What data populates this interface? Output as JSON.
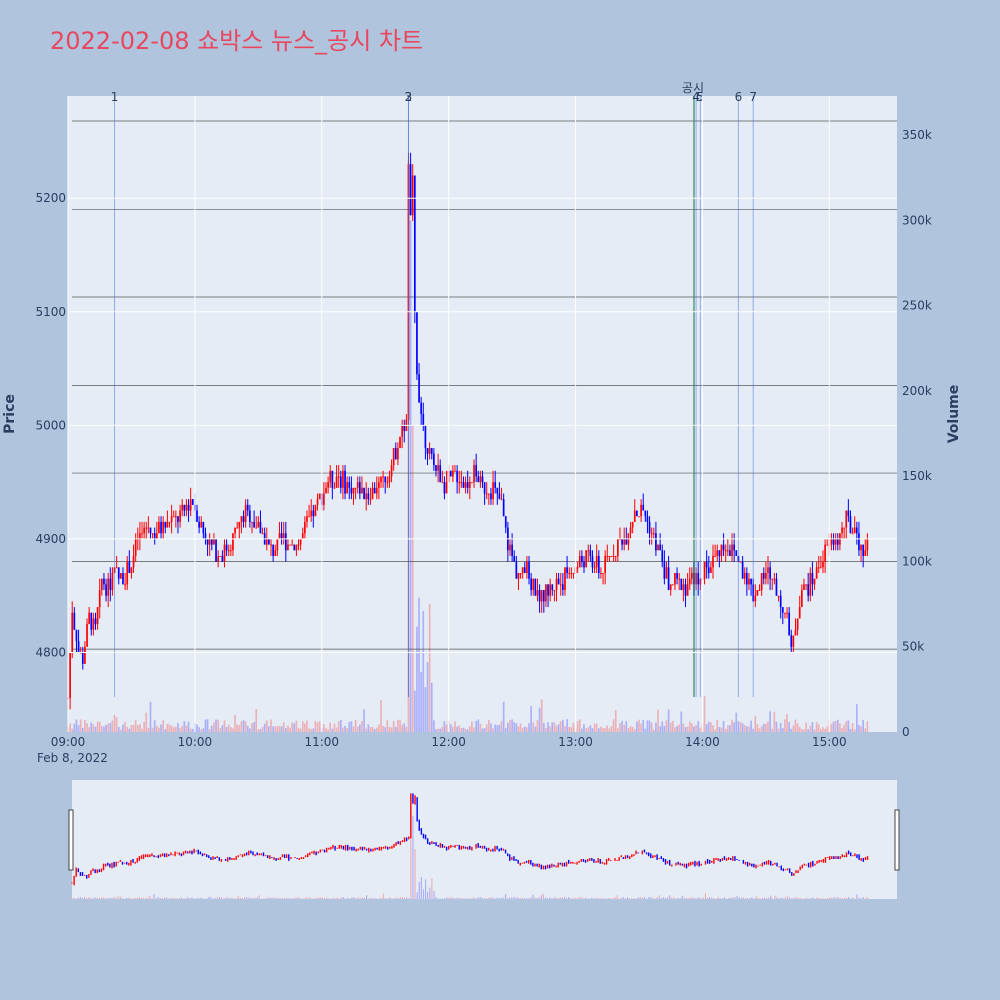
{
  "chart_data": {
    "type": "candlestick",
    "title": "2022-02-08 쇼박스 뉴스_공시 차트",
    "ylabel": "Price",
    "y2label": "Volume",
    "date_label": "Feb 8, 2022",
    "ylim": [
      4730,
      5290
    ],
    "y2lim": [
      0,
      360000
    ],
    "xlim": [
      "09:00",
      "15:32"
    ],
    "price_ticks": [
      4800,
      4900,
      5000,
      5100,
      5200
    ],
    "volume_ticks": [
      {
        "v": 0,
        "label": "0"
      },
      {
        "v": 50000,
        "label": "50k"
      },
      {
        "v": 100000,
        "label": "100k"
      },
      {
        "v": 150000,
        "label": "150k"
      },
      {
        "v": 200000,
        "label": "200k"
      },
      {
        "v": 250000,
        "label": "250k"
      },
      {
        "v": 300000,
        "label": "300k"
      },
      {
        "v": 350000,
        "label": "350k"
      }
    ],
    "time_ticks": [
      "09:00",
      "10:00",
      "11:00",
      "12:00",
      "13:00",
      "14:00",
      "15:00"
    ],
    "up_color": "#ff0000",
    "down_color": "#0000ff",
    "disclosure_color": "#2e8b57",
    "price_keypoints": [
      [
        "09:00",
        4760
      ],
      [
        "09:02",
        4840
      ],
      [
        "09:05",
        4800
      ],
      [
        "09:07",
        4795
      ],
      [
        "09:10",
        4830
      ],
      [
        "09:13",
        4820
      ],
      [
        "09:16",
        4865
      ],
      [
        "09:19",
        4855
      ],
      [
        "09:22",
        4870
      ],
      [
        "09:26",
        4865
      ],
      [
        "09:30",
        4880
      ],
      [
        "09:33",
        4900
      ],
      [
        "09:37",
        4910
      ],
      [
        "09:42",
        4905
      ],
      [
        "09:48",
        4915
      ],
      [
        "09:53",
        4920
      ],
      [
        "09:58",
        4935
      ],
      [
        "10:03",
        4910
      ],
      [
        "10:07",
        4895
      ],
      [
        "10:12",
        4885
      ],
      [
        "10:18",
        4900
      ],
      [
        "10:24",
        4925
      ],
      [
        "10:30",
        4910
      ],
      [
        "10:36",
        4890
      ],
      [
        "10:42",
        4900
      ],
      [
        "10:48",
        4895
      ],
      [
        "10:54",
        4915
      ],
      [
        "10:58",
        4930
      ],
      [
        "11:03",
        4950
      ],
      [
        "11:08",
        4955
      ],
      [
        "11:13",
        4945
      ],
      [
        "11:18",
        4945
      ],
      [
        "11:22",
        4940
      ],
      [
        "11:27",
        4948
      ],
      [
        "11:31",
        4955
      ],
      [
        "11:35",
        4980
      ],
      [
        "11:38",
        4995
      ],
      [
        "11:40",
        5000
      ],
      [
        "11:41",
        5230
      ],
      [
        "11:42",
        5180
      ],
      [
        "11:43",
        5220
      ],
      [
        "11:44",
        5100
      ],
      [
        "11:45",
        5050
      ],
      [
        "11:47",
        5010
      ],
      [
        "11:49",
        4990
      ],
      [
        "11:51",
        4975
      ],
      [
        "11:54",
        4960
      ],
      [
        "11:58",
        4950
      ],
      [
        "12:03",
        4955
      ],
      [
        "12:08",
        4950
      ],
      [
        "12:12",
        4958
      ],
      [
        "12:17",
        4945
      ],
      [
        "12:21",
        4945
      ],
      [
        "12:25",
        4930
      ],
      [
        "12:28",
        4895
      ],
      [
        "12:32",
        4870
      ],
      [
        "12:37",
        4870
      ],
      [
        "12:42",
        4850
      ],
      [
        "12:48",
        4855
      ],
      [
        "12:54",
        4865
      ],
      [
        "13:00",
        4875
      ],
      [
        "13:06",
        4885
      ],
      [
        "13:12",
        4870
      ],
      [
        "13:18",
        4890
      ],
      [
        "13:24",
        4905
      ],
      [
        "13:28",
        4925
      ],
      [
        "13:32",
        4925
      ],
      [
        "13:37",
        4900
      ],
      [
        "13:41",
        4880
      ],
      [
        "13:44",
        4860
      ],
      [
        "13:48",
        4862
      ],
      [
        "13:52",
        4858
      ],
      [
        "13:56",
        4865
      ],
      [
        "14:00",
        4870
      ],
      [
        "14:04",
        4880
      ],
      [
        "14:08",
        4890
      ],
      [
        "14:12",
        4895
      ],
      [
        "14:16",
        4885
      ],
      [
        "14:20",
        4870
      ],
      [
        "14:24",
        4850
      ],
      [
        "14:28",
        4865
      ],
      [
        "14:32",
        4870
      ],
      [
        "14:36",
        4850
      ],
      [
        "14:40",
        4830
      ],
      [
        "14:42",
        4800
      ],
      [
        "14:44",
        4825
      ],
      [
        "14:47",
        4855
      ],
      [
        "14:51",
        4860
      ],
      [
        "14:56",
        4880
      ],
      [
        "15:00",
        4895
      ],
      [
        "15:04",
        4900
      ],
      [
        "15:08",
        4915
      ],
      [
        "15:12",
        4905
      ],
      [
        "15:15",
        4890
      ],
      [
        "15:18",
        4900
      ]
    ],
    "vertical_markers": [
      {
        "label": "1",
        "time": "09:22",
        "color": "#4169e1"
      },
      {
        "label": "2",
        "time": "11:41",
        "color": "#4169e1"
      },
      {
        "label": "3",
        "time": "11:41",
        "color": "#4169e1"
      },
      {
        "label": "공시",
        "time": "13:56",
        "color": "#2e8b57"
      },
      {
        "label": "4",
        "time": "13:57",
        "color": "#4169e1"
      },
      {
        "label": "5",
        "time": "13:59",
        "color": "#4169e1"
      },
      {
        "label": "6",
        "time": "14:17",
        "color": "#4169e1"
      },
      {
        "label": "7",
        "time": "14:24",
        "color": "#4169e1"
      }
    ],
    "horizontal_levels": [
      4803,
      4880,
      4958,
      5035,
      5113,
      5190,
      5268
    ]
  }
}
